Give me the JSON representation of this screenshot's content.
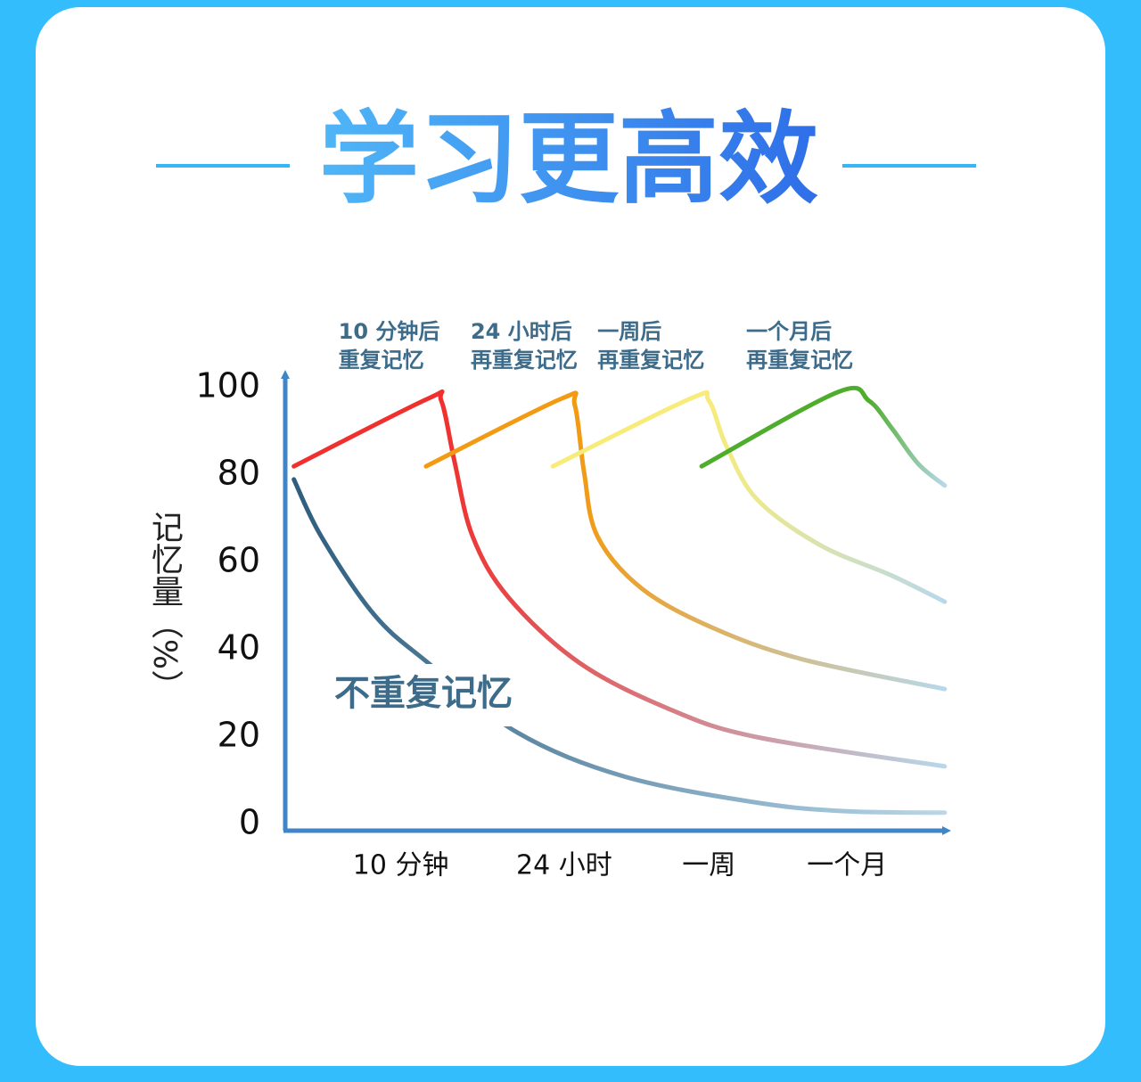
{
  "chart_data": {
    "type": "line",
    "title": "学习更高效",
    "y_label": "记忆量（%）",
    "xlim": [
      0,
      100
    ],
    "xticks": [
      {
        "value": 17.4,
        "label": "10 分钟"
      },
      {
        "value": 42,
        "label": "24 小时"
      },
      {
        "value": 63.8,
        "label": "一周"
      },
      {
        "value": 84.6,
        "label": "一个月"
      }
    ],
    "ylim": [
      0,
      100
    ],
    "yticks": [
      0,
      20,
      40,
      60,
      80,
      100
    ],
    "fade_color": "#b8d8ea",
    "series": [
      {
        "name": "不重复记忆",
        "color": "#2e5d7e",
        "x": [
          1.3,
          5.4,
          13.4,
          21.5,
          35,
          51,
          71,
          84.6,
          99.3
        ],
        "values": [
          79,
          66,
          48,
          37,
          21,
          11,
          5,
          3,
          2.7
        ]
      },
      {
        "name_lines": [
          "10 分钟后",
          "重复记忆"
        ],
        "color": "#f0302e",
        "x": [
          1.3,
          21.5,
          23.5,
          25.5,
          28.2,
          33.6,
          44.3,
          57.7,
          71,
          99.3
        ],
        "values": [
          82,
          97.5,
          97,
          83,
          66,
          52,
          37,
          26.5,
          20,
          13.3
        ]
      },
      {
        "name_lines": [
          "24 小时后",
          "再重复记忆"
        ],
        "color": "#f29a12",
        "x": [
          21.2,
          41.6,
          43.6,
          45,
          47,
          53.7,
          64.4,
          77.9,
          99.3
        ],
        "values": [
          82,
          97.5,
          96,
          80.6,
          66,
          54,
          45,
          37.8,
          31
        ]
      },
      {
        "name_lines": [
          "一周后",
          "再重复记忆"
        ],
        "color": "#f7ec7a",
        "x": [
          40.3,
          61,
          63.8,
          66.4,
          71,
          80.5,
          91.3,
          99.3
        ],
        "values": [
          82,
          97.5,
          97,
          86.7,
          74.5,
          64,
          57,
          51
        ]
      },
      {
        "name_lines": [
          "一个月后",
          "再重复记忆"
        ],
        "color": "#4fad2c",
        "x": [
          62.7,
          83.2,
          87.9,
          91.3,
          95.3,
          99.3
        ],
        "values": [
          82,
          99,
          97,
          90.8,
          82.6,
          77.6
        ]
      }
    ]
  }
}
